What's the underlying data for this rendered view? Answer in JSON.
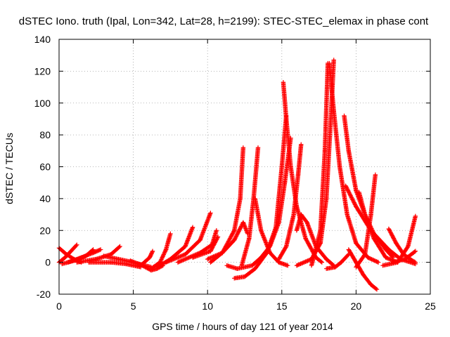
{
  "chart_data": {
    "type": "scatter",
    "title": "dSTEC Iono. truth (Ipal, Lon=342, Lat=28, h=2199): STEC-STEC_elemax in phase cont",
    "xlabel": "GPS time / hours of day 121 of year 2014",
    "ylabel": "dSTEC  / TECUs",
    "xlim": [
      0,
      25
    ],
    "ylim": [
      -20,
      140
    ],
    "xticks": [
      0,
      5,
      10,
      15,
      20,
      25
    ],
    "yticks": [
      -20,
      0,
      20,
      40,
      60,
      80,
      100,
      120,
      140
    ],
    "grid": true,
    "marker": "+",
    "color": "#ff0000",
    "series": [
      {
        "arcs": [
          [
            0.0,
            9
          ],
          [
            0.5,
            5
          ],
          [
            1.0,
            2
          ],
          [
            1.5,
            0
          ]
        ]
      },
      {
        "arcs": [
          [
            0.0,
            0
          ],
          [
            0.4,
            3
          ],
          [
            0.8,
            7
          ],
          [
            1.2,
            11
          ]
        ]
      },
      {
        "arcs": [
          [
            0.2,
            -1
          ],
          [
            1.0,
            1
          ],
          [
            1.8,
            4
          ],
          [
            2.3,
            8
          ]
        ]
      },
      {
        "arcs": [
          [
            0.6,
            0
          ],
          [
            1.5,
            3
          ],
          [
            2.3,
            6
          ],
          [
            2.8,
            8
          ]
        ]
      },
      {
        "arcs": [
          [
            1.2,
            0
          ],
          [
            2.5,
            2
          ],
          [
            3.5,
            5
          ],
          [
            4.1,
            10
          ]
        ]
      },
      {
        "arcs": [
          [
            2.0,
            0
          ],
          [
            3.5,
            0
          ],
          [
            4.5,
            -1
          ],
          [
            5.5,
            -3
          ]
        ]
      },
      {
        "arcs": [
          [
            3.0,
            4
          ],
          [
            4.0,
            2
          ],
          [
            5.0,
            0
          ],
          [
            6.2,
            -3
          ]
        ]
      },
      {
        "arcs": [
          [
            4.8,
            1
          ],
          [
            5.6,
            -2
          ],
          [
            6.2,
            -5
          ],
          [
            6.6,
            -4
          ],
          [
            7.0,
            -2
          ]
        ]
      },
      {
        "arcs": [
          [
            5.5,
            -2
          ],
          [
            6.1,
            3
          ],
          [
            6.3,
            7
          ]
        ]
      },
      {
        "arcs": [
          [
            6.2,
            -4
          ],
          [
            6.8,
            0
          ],
          [
            7.2,
            8
          ],
          [
            7.5,
            18
          ]
        ]
      },
      {
        "arcs": [
          [
            6.6,
            -3
          ],
          [
            7.5,
            2
          ],
          [
            8.5,
            10
          ],
          [
            9.0,
            22
          ]
        ]
      },
      {
        "arcs": [
          [
            7.2,
            0
          ],
          [
            8.5,
            5
          ],
          [
            9.5,
            14
          ],
          [
            10.2,
            31
          ]
        ]
      },
      {
        "arcs": [
          [
            8.0,
            0
          ],
          [
            9.5,
            6
          ],
          [
            10.3,
            11
          ],
          [
            10.6,
            20
          ]
        ]
      },
      {
        "arcs": [
          [
            9.0,
            3
          ],
          [
            10.2,
            7
          ],
          [
            10.7,
            16
          ]
        ]
      },
      {
        "arcs": [
          [
            10.0,
            2
          ],
          [
            11.0,
            6
          ],
          [
            11.8,
            14
          ],
          [
            12.4,
            25
          ],
          [
            12.7,
            18
          ]
        ]
      },
      {
        "arcs": [
          [
            10.2,
            0
          ],
          [
            11.0,
            6
          ],
          [
            11.8,
            20
          ],
          [
            12.2,
            40
          ],
          [
            12.4,
            72
          ]
        ]
      },
      {
        "arcs": [
          [
            11.3,
            -2
          ],
          [
            12.0,
            -4
          ],
          [
            13.0,
            -2
          ],
          [
            13.6,
            3
          ],
          [
            14.2,
            10
          ],
          [
            14.8,
            25
          ],
          [
            15.2,
            50
          ],
          [
            15.6,
            78
          ]
        ]
      },
      {
        "arcs": [
          [
            11.8,
            -10
          ],
          [
            12.5,
            -9
          ],
          [
            13.2,
            -4
          ],
          [
            14.0,
            6
          ],
          [
            14.6,
            22
          ],
          [
            15.0,
            60
          ],
          [
            15.3,
            92
          ]
        ]
      },
      {
        "arcs": [
          [
            12.3,
            -2
          ],
          [
            12.8,
            15
          ],
          [
            13.1,
            40
          ],
          [
            13.4,
            72
          ]
        ]
      },
      {
        "arcs": [
          [
            13.2,
            40
          ],
          [
            13.6,
            20
          ],
          [
            14.2,
            6
          ],
          [
            14.8,
            0
          ],
          [
            15.4,
            -2
          ]
        ]
      },
      {
        "arcs": [
          [
            15.1,
            113
          ],
          [
            15.3,
            90
          ],
          [
            15.6,
            60
          ],
          [
            16.0,
            35
          ],
          [
            16.6,
            15
          ],
          [
            17.3,
            3
          ],
          [
            17.7,
            0
          ]
        ]
      },
      {
        "arcs": [
          [
            14.8,
            2
          ],
          [
            15.3,
            10
          ],
          [
            15.8,
            30
          ],
          [
            16.1,
            55
          ],
          [
            16.3,
            74
          ]
        ]
      },
      {
        "arcs": [
          [
            16.0,
            20
          ],
          [
            16.3,
            30
          ],
          [
            16.7,
            25
          ],
          [
            17.3,
            10
          ],
          [
            18.0,
            2
          ],
          [
            18.5,
            -2
          ]
        ]
      },
      {
        "arcs": [
          [
            16.0,
            -2
          ],
          [
            17.0,
            2
          ],
          [
            17.6,
            12
          ],
          [
            18.0,
            40
          ],
          [
            18.3,
            90
          ],
          [
            18.5,
            127
          ]
        ]
      },
      {
        "arcs": [
          [
            17.0,
            -2
          ],
          [
            17.6,
            20
          ],
          [
            17.9,
            70
          ],
          [
            18.1,
            125
          ]
        ]
      },
      {
        "arcs": [
          [
            18.2,
            125
          ],
          [
            18.5,
            95
          ],
          [
            18.9,
            60
          ],
          [
            19.4,
            30
          ],
          [
            20.0,
            12
          ],
          [
            20.8,
            3
          ],
          [
            21.5,
            0
          ]
        ]
      },
      {
        "arcs": [
          [
            18.0,
            -4
          ],
          [
            18.6,
            -3
          ],
          [
            19.0,
            0
          ],
          [
            19.5,
            5
          ]
        ]
      },
      {
        "arcs": [
          [
            19.2,
            92
          ],
          [
            19.5,
            70
          ],
          [
            20.0,
            45
          ],
          [
            20.6,
            30
          ],
          [
            21.2,
            18
          ],
          [
            22.0,
            8
          ],
          [
            22.5,
            3
          ]
        ]
      },
      {
        "arcs": [
          [
            19.3,
            48
          ],
          [
            20.0,
            35
          ],
          [
            21.0,
            20
          ],
          [
            22.2,
            8
          ],
          [
            23.0,
            2
          ],
          [
            24.0,
            -1
          ]
        ]
      },
      {
        "arcs": [
          [
            19.5,
            8
          ],
          [
            20.0,
            0
          ],
          [
            20.5,
            -8
          ],
          [
            21.0,
            -14
          ],
          [
            21.4,
            -17
          ]
        ]
      },
      {
        "arcs": [
          [
            20.0,
            -3
          ],
          [
            20.6,
            5
          ],
          [
            21.0,
            30
          ],
          [
            21.3,
            55
          ]
        ]
      },
      {
        "arcs": [
          [
            20.2,
            44
          ],
          [
            20.6,
            30
          ],
          [
            21.2,
            15
          ],
          [
            22.0,
            3
          ],
          [
            22.8,
            0
          ]
        ]
      },
      {
        "arcs": [
          [
            21.8,
            -2
          ],
          [
            22.8,
            0
          ],
          [
            23.5,
            10
          ],
          [
            24.0,
            29
          ]
        ]
      },
      {
        "arcs": [
          [
            22.2,
            21
          ],
          [
            22.7,
            12
          ],
          [
            23.2,
            5
          ],
          [
            23.8,
            1
          ],
          [
            24.0,
            0
          ]
        ]
      },
      {
        "arcs": [
          [
            22.5,
            0
          ],
          [
            23.3,
            2
          ],
          [
            24.0,
            7
          ]
        ]
      }
    ]
  }
}
